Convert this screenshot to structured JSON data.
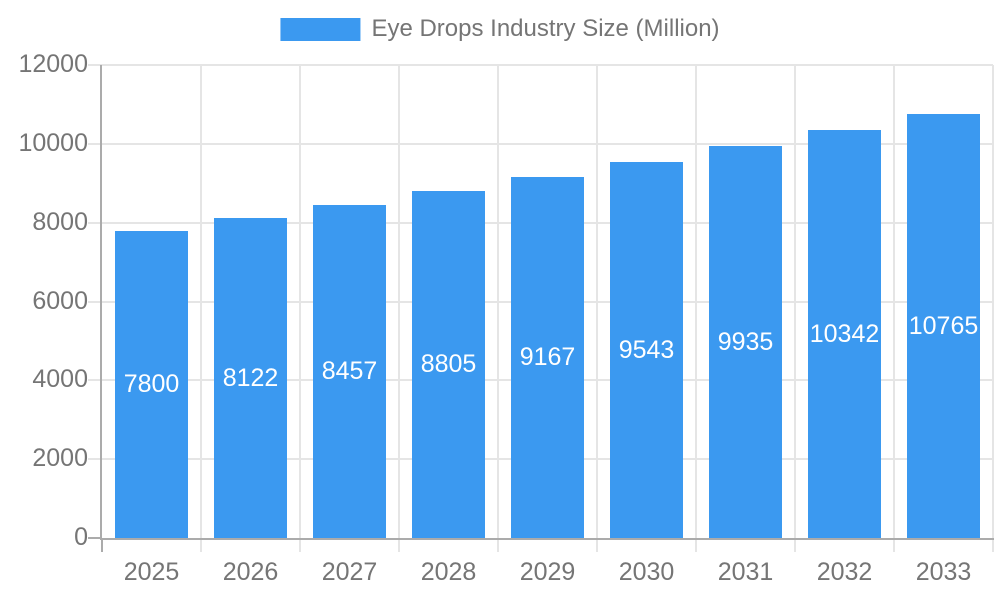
{
  "legend": {
    "series_label": "Eye Drops Industry Size (Million)"
  },
  "colors": {
    "bar": "#3B99F0",
    "axis_text": "#757575",
    "bar_label_text": "#FFFFFF",
    "gridline": "#E5E5E5",
    "axis_line": "#ABABAB",
    "background": "#FFFFFF"
  },
  "chart_data": {
    "type": "bar",
    "title": "Eye Drops Industry Size (Million)",
    "categories": [
      "2025",
      "2026",
      "2027",
      "2028",
      "2029",
      "2030",
      "2031",
      "2032",
      "2033"
    ],
    "series": [
      {
        "name": "Eye Drops Industry Size (Million)",
        "values": [
          7800,
          8122,
          8457,
          8805,
          9167,
          9543,
          9935,
          10342,
          10765
        ]
      }
    ],
    "xlabel": "",
    "ylabel": "",
    "ylim": [
      0,
      12000
    ],
    "yticks": [
      0,
      2000,
      4000,
      6000,
      8000,
      10000,
      12000
    ],
    "grid": true,
    "legend_position": "top-center",
    "value_labels": "inside-middle"
  }
}
